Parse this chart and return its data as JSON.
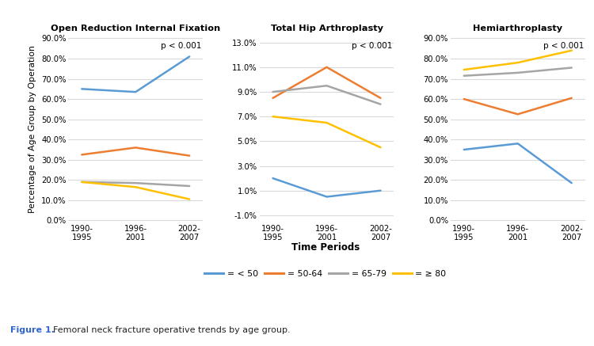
{
  "time_periods": [
    "1990-\n1995",
    "1996-\n2001",
    "2002-\n2007"
  ],
  "title_main": "Open Reduction Internal Fixation",
  "title_mid": "Total Hip Arthroplasty",
  "title_right": "Hemiarthroplasty",
  "pvalue": "p < 0.001",
  "xlabel": "Time Periods",
  "ylabel": "Percentage of Age Group by Operation",
  "legend_labels": [
    "= < 50",
    "= 50-64",
    "= 65-79",
    "= ≥ 80"
  ],
  "colors": [
    "#5b9bd5",
    "#ed7d31",
    "#a5a5a5",
    "#ffc000"
  ],
  "orif": {
    "lt50": [
      65.0,
      63.5,
      81.0
    ],
    "50_64": [
      32.5,
      36.0,
      32.0
    ],
    "65_79": [
      19.0,
      18.5,
      17.0
    ],
    "ge80": [
      19.0,
      16.5,
      10.5
    ]
  },
  "tha": {
    "lt50": [
      2.0,
      0.5,
      1.0
    ],
    "50_64": [
      8.5,
      11.0,
      8.5
    ],
    "65_79": [
      9.0,
      9.5,
      8.0
    ],
    "ge80": [
      7.0,
      6.5,
      4.5
    ]
  },
  "hemi": {
    "lt50": [
      35.0,
      38.0,
      18.5
    ],
    "50_64": [
      60.0,
      52.5,
      60.5
    ],
    "65_79": [
      71.5,
      73.0,
      75.5
    ],
    "ge80": [
      74.5,
      78.0,
      84.0
    ]
  },
  "orif_ylim": [
    -0.005,
    0.91
  ],
  "orif_yticks": [
    0.0,
    0.1,
    0.2,
    0.3,
    0.4,
    0.5,
    0.6,
    0.7,
    0.8,
    0.9
  ],
  "tha_ylim": [
    -0.015,
    0.135
  ],
  "tha_yticks": [
    -0.01,
    0.01,
    0.03,
    0.05,
    0.07,
    0.09,
    0.11,
    0.13
  ],
  "hemi_ylim": [
    -0.005,
    0.91
  ],
  "hemi_yticks": [
    0.0,
    0.1,
    0.2,
    0.3,
    0.4,
    0.5,
    0.6,
    0.7,
    0.8,
    0.9
  ],
  "background_color": "#ffffff",
  "grid_color": "#d9d9d9",
  "caption_bold": "Figure 1.",
  "caption_rest": "  Femoral neck fracture operative trends by age group."
}
